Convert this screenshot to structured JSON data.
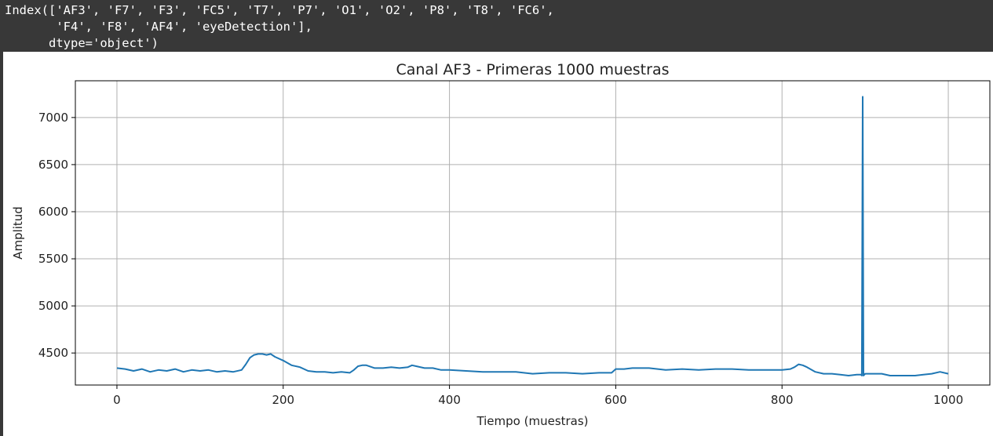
{
  "output": {
    "lines": [
      "Index(['AF3', 'F7', 'F3', 'FC5', 'T7', 'P7', 'O1', 'O2', 'P8', 'T8', 'FC6',",
      "       'F4', 'F8', 'AF4', 'eyeDetection'],",
      "      dtype='object')"
    ]
  },
  "chart_data": {
    "type": "line",
    "title": "Canal AF3 - Primeras 1000 muestras",
    "xlabel": "Tiempo (muestras)",
    "ylabel": "Amplitud",
    "xlim": [
      -50,
      1050
    ],
    "ylim": [
      4160,
      7390
    ],
    "xticks": [
      0,
      200,
      400,
      600,
      800,
      1000
    ],
    "yticks": [
      4500,
      5000,
      5500,
      6000,
      6500,
      7000
    ],
    "grid": true,
    "series": [
      {
        "color": "#1f77b4",
        "x": [
          0,
          10,
          20,
          30,
          40,
          50,
          60,
          70,
          80,
          90,
          100,
          110,
          120,
          130,
          140,
          150,
          155,
          160,
          165,
          170,
          175,
          180,
          185,
          190,
          200,
          210,
          220,
          230,
          240,
          250,
          260,
          270,
          280,
          285,
          290,
          295,
          300,
          310,
          320,
          330,
          340,
          350,
          355,
          360,
          370,
          380,
          390,
          400,
          420,
          440,
          460,
          480,
          500,
          520,
          540,
          560,
          580,
          595,
          600,
          610,
          620,
          640,
          660,
          680,
          700,
          720,
          740,
          760,
          780,
          800,
          810,
          815,
          820,
          825,
          830,
          840,
          850,
          860,
          870,
          880,
          890,
          895,
          896,
          897,
          898,
          899,
          900,
          910,
          920,
          930,
          940,
          950,
          960,
          970,
          980,
          990,
          1000
        ],
        "y": [
          4340,
          4330,
          4310,
          4330,
          4300,
          4320,
          4310,
          4330,
          4300,
          4320,
          4310,
          4320,
          4300,
          4310,
          4300,
          4320,
          4380,
          4450,
          4480,
          4490,
          4490,
          4480,
          4490,
          4460,
          4420,
          4370,
          4350,
          4310,
          4300,
          4300,
          4290,
          4300,
          4290,
          4320,
          4360,
          4370,
          4370,
          4340,
          4340,
          4350,
          4340,
          4350,
          4370,
          4360,
          4340,
          4340,
          4320,
          4320,
          4310,
          4300,
          4300,
          4300,
          4280,
          4290,
          4290,
          4280,
          4290,
          4290,
          4330,
          4330,
          4340,
          4340,
          4320,
          4330,
          4320,
          4330,
          4330,
          4320,
          4320,
          4320,
          4330,
          4350,
          4380,
          4370,
          4350,
          4300,
          4280,
          4280,
          4270,
          4260,
          4270,
          4270,
          4260,
          7220,
          4260,
          4270,
          4280,
          4280,
          4280,
          4260,
          4260,
          4260,
          4260,
          4270,
          4280,
          4300,
          4280
        ]
      }
    ]
  }
}
